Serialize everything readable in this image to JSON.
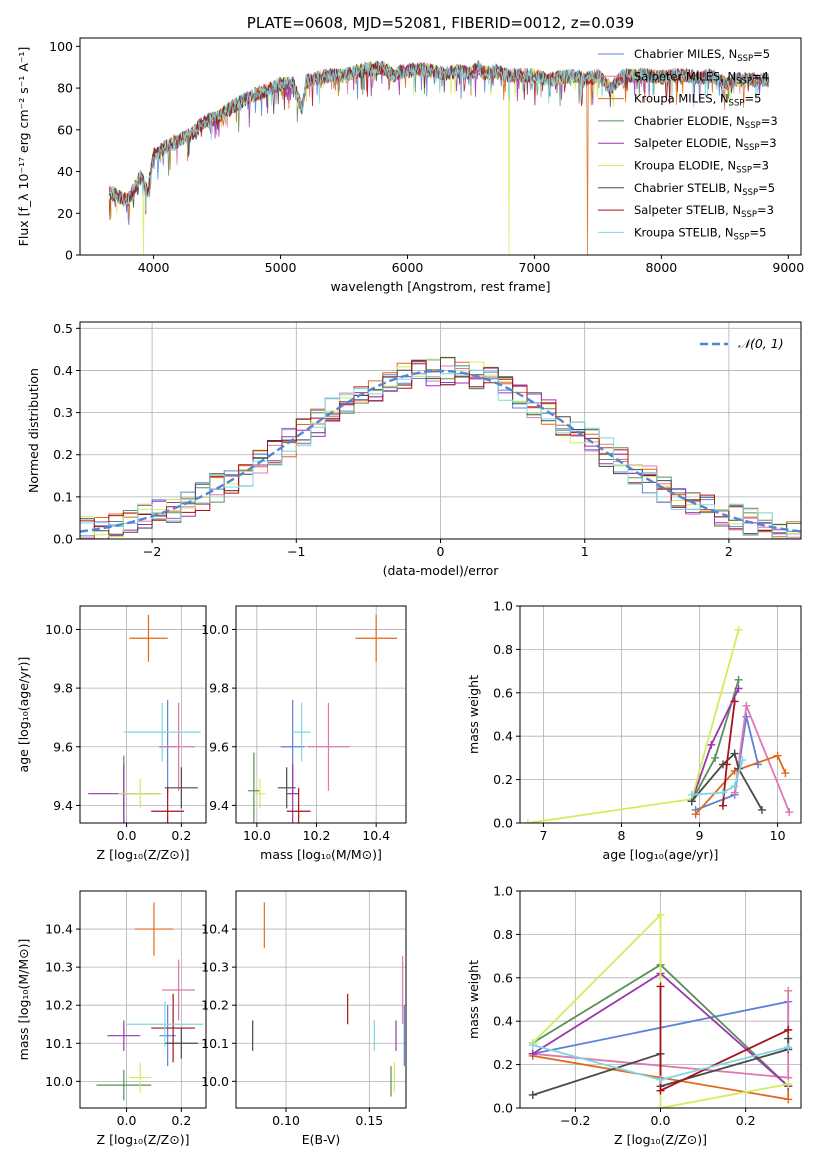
{
  "colors": {
    "chabrier_miles": "#5a82d6",
    "salpeter_miles": "#e078b0",
    "kroupa_miles": "#e06a1c",
    "chabrier_elodie": "#5b8f5a",
    "salpeter_elodie": "#9b35b0",
    "kroupa_elodie": "#d4ec5c",
    "chabrier_stelib": "#4a4a4a",
    "salpeter_stelib": "#a8121c",
    "kroupa_stelib": "#7fd8e0",
    "grid": "#b0b0b0",
    "normal_curve": "#4f86d6"
  },
  "chart_data": [
    {
      "id": "spectrum",
      "type": "line",
      "title": "PLATE=0608, MJD=52081, FIBERID=0012, z=0.039",
      "xlabel": "wavelength [Angstrom, rest frame]",
      "ylabel": "Flux [f_λ 10⁻¹⁷ erg cm⁻² s⁻¹ A⁻¹]",
      "xlim": [
        3420,
        9100
      ],
      "ylim": [
        0,
        104
      ],
      "xticks": [
        4000,
        5000,
        6000,
        7000,
        8000,
        9000
      ],
      "yticks": [
        0,
        20,
        40,
        60,
        80,
        100
      ],
      "legend_position": "top-right",
      "legend": [
        {
          "label": "Chabrier MILES, N",
          "sub": "SSP",
          "tail": "=5",
          "color": "#5a82d6"
        },
        {
          "label": "Salpeter MILES, N",
          "sub": "SSP",
          "tail": "=4",
          "color": "#e078b0"
        },
        {
          "label": "Kroupa MILES, N",
          "sub": "SSP",
          "tail": "=5",
          "color": "#e06a1c"
        },
        {
          "label": "Chabrier ELODIE, N",
          "sub": "SSP",
          "tail": "=3",
          "color": "#5b8f5a"
        },
        {
          "label": "Salpeter ELODIE, N",
          "sub": "SSP",
          "tail": "=3",
          "color": "#9b35b0"
        },
        {
          "label": "Kroupa ELODIE, N",
          "sub": "SSP",
          "tail": "=3",
          "color": "#d4ec5c"
        },
        {
          "label": "Chabrier STELIB, N",
          "sub": "SSP",
          "tail": "=5",
          "color": "#4a4a4a"
        },
        {
          "label": "Salpeter STELIB, N",
          "sub": "SSP",
          "tail": "=3",
          "color": "#a8121c"
        },
        {
          "label": "Kroupa STELIB, N",
          "sub": "SSP",
          "tail": "=5",
          "color": "#7fd8e0"
        }
      ],
      "continuum": {
        "x": [
          3650,
          3800,
          3900,
          3950,
          4000,
          4100,
          4200,
          4300,
          4400,
          4500,
          4600,
          4700,
          4800,
          4900,
          5000,
          5100,
          5170,
          5200,
          5300,
          5400,
          5500,
          5600,
          5700,
          5800,
          5890,
          5950,
          6000,
          6100,
          6200,
          6300,
          6400,
          6500,
          6563,
          6600,
          6700,
          6800,
          6900,
          7000,
          7100,
          7200,
          7300,
          7400,
          7500,
          7600,
          7700,
          7800,
          7900,
          8000,
          8100,
          8200,
          8300,
          8400,
          8500,
          8600,
          8700,
          8800,
          8850
        ],
        "y": [
          30,
          26,
          38,
          30,
          48,
          52,
          55,
          58,
          64,
          66,
          70,
          74,
          77,
          79,
          82,
          82,
          70,
          83,
          85,
          86,
          86,
          88,
          89,
          90,
          86,
          88,
          88,
          89,
          88,
          87,
          88,
          87,
          90,
          87,
          88,
          86,
          86,
          86,
          84,
          85,
          86,
          84,
          86,
          80,
          86,
          86,
          86,
          85,
          86,
          86,
          85,
          86,
          82,
          84,
          84,
          84,
          84
        ]
      },
      "drops": [
        {
          "series": "Kroupa ELODIE",
          "x": 3920,
          "to": 0
        },
        {
          "series": "Kroupa ELODIE",
          "x": 6800,
          "to": 0
        },
        {
          "series": "Kroupa MILES",
          "x": 7420,
          "to": 0
        }
      ]
    },
    {
      "id": "residuals",
      "type": "histogram",
      "xlabel": "(data-model)/error",
      "ylabel": "Normed distribution",
      "xlim": [
        -2.5,
        2.5
      ],
      "ylim": [
        0,
        0.515
      ],
      "xticks": [
        -2,
        -1,
        0,
        1,
        2
      ],
      "yticks": [
        0.0,
        0.1,
        0.2,
        0.3,
        0.4,
        0.5
      ],
      "bin_width": 0.1,
      "bin_start": -2.5,
      "normal_curve_label": "𝒩(0, 1)",
      "legend_position": "top-right"
    },
    {
      "id": "age_vs_Z",
      "type": "errorbar",
      "xlabel": "Z [log₁₀(Z/Z⊙)]",
      "ylabel": "age  [log₁₀(age/yr)]",
      "xlim": [
        -0.17,
        0.29
      ],
      "ylim": [
        9.34,
        10.08
      ],
      "xticks": [
        0.0,
        0.2
      ],
      "yticks": [
        9.4,
        9.6,
        9.8,
        10.0
      ],
      "points": [
        {
          "series": "Chabrier MILES",
          "x": 0.15,
          "xerr": 0.03,
          "y": 9.6,
          "yerr": 0.16
        },
        {
          "series": "Salpeter MILES",
          "x": 0.19,
          "xerr": 0.06,
          "y": 9.6,
          "yerr": 0.15
        },
        {
          "series": "Kroupa MILES",
          "x": 0.08,
          "xerr": 0.07,
          "y": 9.97,
          "yerr": 0.08
        },
        {
          "series": "Chabrier ELODIE",
          "x": -0.01,
          "xerr": 0.01,
          "y": 9.44,
          "yerr": 0.13
        },
        {
          "series": "Salpeter ELODIE",
          "x": -0.01,
          "xerr": 0.13,
          "y": 9.44,
          "yerr": 0.1
        },
        {
          "series": "Kroupa ELODIE",
          "x": 0.05,
          "xerr": 0.08,
          "y": 9.44,
          "yerr": 0.05
        },
        {
          "series": "Chabrier STELIB",
          "x": 0.2,
          "xerr": 0.06,
          "y": 9.46,
          "yerr": 0.07
        },
        {
          "series": "Salpeter STELIB",
          "x": 0.15,
          "xerr": 0.06,
          "y": 9.38,
          "yerr": 0.08
        },
        {
          "series": "Kroupa STELIB",
          "x": 0.13,
          "xerr": 0.14,
          "y": 9.65,
          "yerr": 0.1
        }
      ]
    },
    {
      "id": "age_vs_mass",
      "type": "errorbar",
      "xlabel": "mass [log₁₀(M/M⊙)]",
      "ylabel": "",
      "xlim": [
        9.93,
        10.5
      ],
      "ylim": [
        9.34,
        10.08
      ],
      "xticks": [
        10.0,
        10.2,
        10.4
      ],
      "yticks": [
        9.4,
        9.6,
        9.8,
        10.0
      ],
      "points": [
        {
          "series": "Chabrier MILES",
          "x": 10.12,
          "xerr": 0.04,
          "y": 9.6,
          "yerr": 0.16
        },
        {
          "series": "Salpeter MILES",
          "x": 10.24,
          "xerr": 0.07,
          "y": 9.6,
          "yerr": 0.15
        },
        {
          "series": "Kroupa MILES",
          "x": 10.4,
          "xerr": 0.07,
          "y": 9.97,
          "yerr": 0.08
        },
        {
          "series": "Chabrier ELODIE",
          "x": 9.99,
          "xerr": 0.02,
          "y": 9.45,
          "yerr": 0.13
        },
        {
          "series": "Salpeter ELODIE",
          "x": 10.12,
          "xerr": 0.02,
          "y": 9.44,
          "yerr": 0.1
        },
        {
          "series": "Kroupa ELODIE",
          "x": 10.01,
          "xerr": 0.02,
          "y": 9.44,
          "yerr": 0.05
        },
        {
          "series": "Chabrier STELIB",
          "x": 10.1,
          "xerr": 0.03,
          "y": 9.46,
          "yerr": 0.07
        },
        {
          "series": "Salpeter STELIB",
          "x": 10.14,
          "xerr": 0.04,
          "y": 9.38,
          "yerr": 0.08
        },
        {
          "series": "Kroupa STELIB",
          "x": 10.15,
          "xerr": 0.03,
          "y": 9.65,
          "yerr": 0.1
        }
      ]
    },
    {
      "id": "weight_vs_age",
      "type": "line",
      "xlabel": "age  [log₁₀(age/yr)]",
      "ylabel": "mass weight",
      "xlim": [
        6.7,
        10.3
      ],
      "ylim": [
        0,
        1
      ],
      "xticks": [
        7,
        8,
        9,
        10
      ],
      "yticks": [
        0.0,
        0.2,
        0.4,
        0.6,
        0.8,
        1.0
      ],
      "series": [
        {
          "name": "Chabrier MILES",
          "x": [
            8.95,
            9.45,
            9.6,
            9.75
          ],
          "y": [
            0.06,
            0.13,
            0.49,
            0.27
          ]
        },
        {
          "name": "Salpeter MILES",
          "x": [
            9.45,
            9.6,
            10.15
          ],
          "y": [
            0.14,
            0.54,
            0.05
          ]
        },
        {
          "name": "Kroupa MILES",
          "x": [
            8.95,
            9.45,
            10.0,
            10.1
          ],
          "y": [
            0.04,
            0.24,
            0.31,
            0.23
          ]
        },
        {
          "name": "Chabrier ELODIE",
          "x": [
            8.9,
            9.2,
            9.5
          ],
          "y": [
            0.1,
            0.3,
            0.66
          ]
        },
        {
          "name": "Salpeter ELODIE",
          "x": [
            8.9,
            9.15,
            9.5
          ],
          "y": [
            0.1,
            0.36,
            0.62
          ]
        },
        {
          "name": "Kroupa ELODIE",
          "x": [
            6.8,
            8.9,
            9.5
          ],
          "y": [
            0.0,
            0.11,
            0.89
          ]
        },
        {
          "name": "Chabrier STELIB",
          "x": [
            8.9,
            9.3,
            9.45,
            9.5,
            9.8
          ],
          "y": [
            0.1,
            0.27,
            0.32,
            0.25,
            0.06
          ]
        },
        {
          "name": "Salpeter STELIB",
          "x": [
            9.3,
            9.35,
            9.45
          ],
          "y": [
            0.08,
            0.27,
            0.56
          ]
        },
        {
          "name": "Kroupa STELIB",
          "x": [
            8.9,
            9.3,
            9.45,
            9.55
          ],
          "y": [
            0.13,
            0.14,
            0.17,
            0.29
          ]
        }
      ]
    },
    {
      "id": "mass_vs_Z",
      "type": "errorbar",
      "xlabel": "Z [log₁₀(Z/Z⊙)]",
      "ylabel": "mass [log₁₀(M/M⊙)]",
      "xlim": [
        -0.17,
        0.29
      ],
      "ylim": [
        9.93,
        10.5
      ],
      "xticks": [
        0.0,
        0.2
      ],
      "yticks": [
        10.0,
        10.1,
        10.2,
        10.3,
        10.4
      ],
      "points": [
        {
          "series": "Chabrier MILES",
          "x": 0.15,
          "xerr": 0.03,
          "y": 10.12,
          "yerr": 0.08
        },
        {
          "series": "Salpeter MILES",
          "x": 0.19,
          "xerr": 0.06,
          "y": 10.24,
          "yerr": 0.08
        },
        {
          "series": "Kroupa MILES",
          "x": 0.1,
          "xerr": 0.07,
          "y": 10.4,
          "yerr": 0.07
        },
        {
          "series": "Chabrier ELODIE",
          "x": -0.01,
          "xerr": 0.1,
          "y": 9.99,
          "yerr": 0.04
        },
        {
          "series": "Salpeter ELODIE",
          "x": -0.01,
          "xerr": 0.06,
          "y": 10.12,
          "yerr": 0.04
        },
        {
          "series": "Kroupa ELODIE",
          "x": 0.05,
          "xerr": 0.04,
          "y": 10.01,
          "yerr": 0.04
        },
        {
          "series": "Chabrier STELIB",
          "x": 0.2,
          "xerr": 0.06,
          "y": 10.1,
          "yerr": 0.04
        },
        {
          "series": "Salpeter STELIB",
          "x": 0.17,
          "xerr": 0.08,
          "y": 10.14,
          "yerr": 0.09
        },
        {
          "series": "Kroupa STELIB",
          "x": 0.14,
          "xerr": 0.14,
          "y": 10.15,
          "yerr": 0.06
        }
      ]
    },
    {
      "id": "mass_vs_ebv",
      "type": "errorbar",
      "xlabel": "E(B-V)",
      "ylabel": "",
      "xlim": [
        0.07,
        0.172
      ],
      "ylim": [
        9.93,
        10.5
      ],
      "xticks": [
        0.1,
        0.15
      ],
      "yticks": [
        10.0,
        10.1,
        10.2,
        10.3,
        10.4
      ],
      "points": [
        {
          "series": "Chabrier MILES",
          "x": 0.171,
          "xerr": 0,
          "y": 10.12,
          "yerr": 0.08
        },
        {
          "series": "Salpeter MILES",
          "x": 0.17,
          "xerr": 0,
          "y": 10.24,
          "yerr": 0.09
        },
        {
          "series": "Kroupa MILES",
          "x": 0.087,
          "xerr": 0,
          "y": 10.41,
          "yerr": 0.06
        },
        {
          "series": "Chabrier ELODIE",
          "x": 0.163,
          "xerr": 0,
          "y": 10.0,
          "yerr": 0.04
        },
        {
          "series": "Salpeter ELODIE",
          "x": 0.166,
          "xerr": 0,
          "y": 10.12,
          "yerr": 0.04
        },
        {
          "series": "Kroupa ELODIE",
          "x": 0.165,
          "xerr": 0,
          "y": 10.01,
          "yerr": 0.04
        },
        {
          "series": "Chabrier STELIB",
          "x": 0.08,
          "xerr": 0,
          "y": 10.12,
          "yerr": 0.04
        },
        {
          "series": "Salpeter STELIB",
          "x": 0.137,
          "xerr": 0,
          "y": 10.19,
          "yerr": 0.04
        },
        {
          "series": "Kroupa STELIB",
          "x": 0.153,
          "xerr": 0,
          "y": 10.12,
          "yerr": 0.04
        }
      ]
    },
    {
      "id": "weight_vs_Z",
      "type": "line",
      "xlabel": "Z [log₁₀(Z/Z⊙)]",
      "ylabel": "mass weight",
      "xlim": [
        -0.33,
        0.33
      ],
      "ylim": [
        0,
        1
      ],
      "xticks": [
        -0.2,
        0.0,
        0.2
      ],
      "yticks": [
        0.0,
        0.2,
        0.4,
        0.6,
        0.8,
        1.0
      ],
      "series": [
        {
          "name": "Chabrier MILES",
          "x": [
            -0.3,
            0.3,
            0.3
          ],
          "y": [
            0.25,
            0.49,
            0.27
          ]
        },
        {
          "name": "Salpeter MILES",
          "x": [
            -0.3,
            0.3,
            0.3
          ],
          "y": [
            0.25,
            0.14,
            0.54
          ]
        },
        {
          "name": "Kroupa MILES",
          "x": [
            -0.3,
            0.3,
            0.3
          ],
          "y": [
            0.24,
            0.04,
            0.1
          ]
        },
        {
          "name": "Chabrier ELODIE",
          "x": [
            -0.3,
            0.0,
            0.3
          ],
          "y": [
            0.3,
            0.66,
            0.1
          ]
        },
        {
          "name": "Salpeter ELODIE",
          "x": [
            -0.3,
            0.0,
            0.3
          ],
          "y": [
            0.25,
            0.62,
            0.1
          ]
        },
        {
          "name": "Kroupa ELODIE",
          "x": [
            -0.3,
            0.0,
            0.0,
            0.3
          ],
          "y": [
            0.3,
            0.89,
            0.0,
            0.11
          ]
        },
        {
          "name": "Chabrier STELIB",
          "x": [
            -0.3,
            0.0,
            0.0,
            0.3,
            0.3
          ],
          "y": [
            0.06,
            0.25,
            0.1,
            0.27,
            0.32
          ]
        },
        {
          "name": "Salpeter STELIB",
          "x": [
            0.0,
            0.0,
            0.3
          ],
          "y": [
            0.56,
            0.08,
            0.36
          ]
        },
        {
          "name": "Kroupa STELIB",
          "x": [
            -0.3,
            0.0,
            0.3
          ],
          "y": [
            0.29,
            0.13,
            0.28
          ]
        }
      ]
    }
  ]
}
